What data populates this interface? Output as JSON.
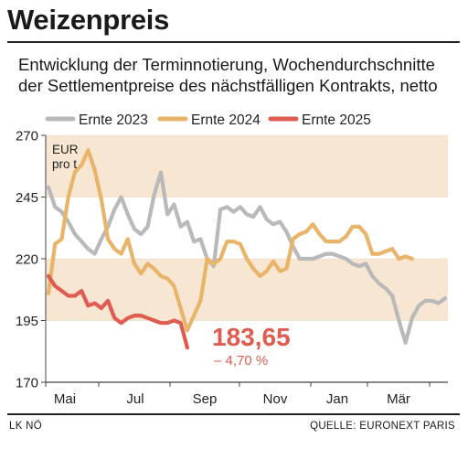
{
  "title": "Weizenpreis",
  "subtitle_lines": [
    "Entwicklung der Terminnotierung, Wochendurchschnitte",
    "der Settlementpreise des nächstfälligen Kontrakts, netto"
  ],
  "footer": {
    "left": "LK NÖ",
    "right": "QUELLE: EURONEXT PARIS"
  },
  "chart_data": {
    "type": "line",
    "unit_label": [
      "EUR",
      "pro t"
    ],
    "ylim": [
      170,
      270
    ],
    "y_ticks": [
      270,
      245,
      220,
      195,
      170
    ],
    "shaded_bands": [
      [
        245,
        270
      ],
      [
        195,
        220
      ]
    ],
    "band_color": "#f7e7d2",
    "x_ticks": [
      "Mai",
      "Jul",
      "Sep",
      "Nov",
      "Jan",
      "Mär"
    ],
    "legend_position": "top",
    "series": [
      {
        "name": "Ernte 2023",
        "color": "#b9b9b9",
        "values": [
          249,
          241,
          239,
          235,
          230,
          227,
          224,
          222,
          228,
          233,
          240,
          245,
          238,
          232,
          230,
          233,
          246,
          255,
          238,
          242,
          233,
          235,
          227,
          228,
          220,
          217,
          240,
          241,
          239,
          241,
          238,
          237,
          241,
          236,
          234,
          235,
          231,
          225,
          220,
          220,
          220,
          221,
          222,
          222,
          221,
          220,
          218,
          217,
          218,
          213,
          210,
          208,
          205,
          195,
          186,
          196,
          201,
          203,
          203,
          202,
          204
        ]
      },
      {
        "name": "Ernte 2024",
        "color": "#e8b469",
        "values": [
          206,
          226,
          228,
          245,
          255,
          258,
          264,
          256,
          244,
          228,
          224,
          222,
          228,
          218,
          214,
          218,
          216,
          213,
          212,
          209,
          200,
          191,
          197,
          203,
          220,
          218,
          220,
          227,
          227,
          226,
          220,
          216,
          213,
          215,
          219,
          215,
          216,
          228,
          230,
          231,
          234,
          230,
          227,
          227,
          227,
          229,
          233,
          233,
          230,
          222,
          222,
          223,
          224,
          220,
          221,
          220
        ]
      },
      {
        "name": "Ernte 2025",
        "color": "#e05c50",
        "values": [
          213,
          209,
          207,
          205,
          205,
          207,
          201,
          202,
          200,
          203,
          196,
          194,
          196,
          197,
          197,
          196,
          195,
          194,
          194,
          195,
          194,
          184
        ]
      }
    ],
    "annotation": {
      "value": "183,65",
      "change": "– 4,70 %"
    }
  }
}
